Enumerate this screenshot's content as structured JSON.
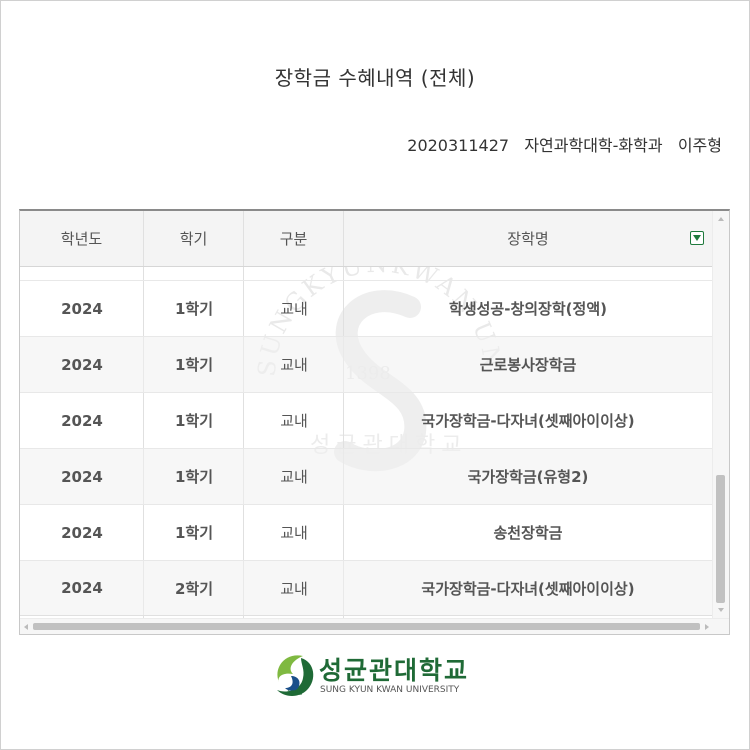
{
  "page": {
    "title": "장학금 수혜내역 (전체)",
    "student_info": "2020311427   자연과학대학-화학과   이주형"
  },
  "table": {
    "headers": {
      "year": "학년도",
      "semester": "학기",
      "category": "구분",
      "scholarship_name": "장학명"
    },
    "rows": [
      {
        "year": "2024",
        "semester": "1학기",
        "category": "교내",
        "scholarship_name": "학생성공-창의장학(정액)"
      },
      {
        "year": "2024",
        "semester": "1학기",
        "category": "교내",
        "scholarship_name": "근로봉사장학금"
      },
      {
        "year": "2024",
        "semester": "1학기",
        "category": "교내",
        "scholarship_name": "국가장학금-다자녀(셋째아이이상)"
      },
      {
        "year": "2024",
        "semester": "1학기",
        "category": "교내",
        "scholarship_name": "국가장학금(유형2)"
      },
      {
        "year": "2024",
        "semester": "1학기",
        "category": "교내",
        "scholarship_name": "송천장학금"
      },
      {
        "year": "2024",
        "semester": "2학기",
        "category": "교내",
        "scholarship_name": "국가장학금-다자녀(셋째아이이상)"
      }
    ]
  },
  "logo": {
    "name_kr": "성균관대학교",
    "name_en": "SUNG KYUN KWAN UNIVERSITY",
    "emblem_year": "1398"
  },
  "watermark": {
    "text": "SUNGKYUNKWAN UNIVERSITY",
    "year": "1398",
    "kr": "성균관대학교"
  },
  "icons": {
    "filter": "filter-icon"
  },
  "colors": {
    "brand_green": "#1f6a36",
    "header_bg": "#f4f4f4"
  }
}
